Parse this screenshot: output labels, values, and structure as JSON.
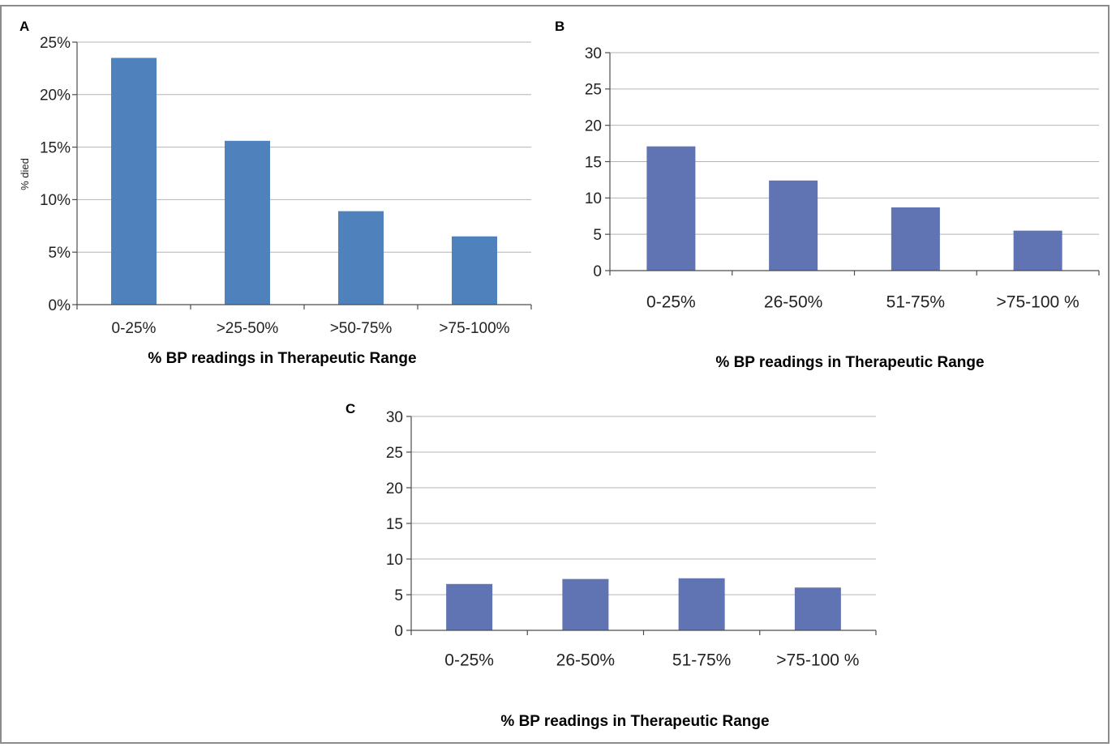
{
  "chart_data": [
    {
      "panel": "A",
      "type": "bar",
      "categories": [
        "0-25%",
        ">25-50%",
        ">50-75%",
        ">75-100%"
      ],
      "values": [
        23.5,
        15.6,
        8.9,
        6.5
      ],
      "ylim": [
        0,
        25
      ],
      "yticks": [
        "0%",
        "5%",
        "10%",
        "15%",
        "20%",
        "25%"
      ],
      "ylabel": "% died",
      "xlabel": "% BP readings in Therapeutic Range",
      "grid": true,
      "color": "#4f81bd"
    },
    {
      "panel": "B",
      "type": "bar",
      "categories": [
        "0-25%",
        "26-50%",
        "51-75%",
        ">75-100 %"
      ],
      "values": [
        17.1,
        12.4,
        8.7,
        5.5
      ],
      "ylim": [
        0,
        30
      ],
      "yticks": [
        "0",
        "5",
        "10",
        "15",
        "20",
        "25",
        "30"
      ],
      "ylabel": "",
      "xlabel": "% BP readings in Therapeutic Range",
      "grid": true,
      "color": "#6074b3"
    },
    {
      "panel": "C",
      "type": "bar",
      "categories": [
        "0-25%",
        "26-50%",
        "51-75%",
        ">75-100 %"
      ],
      "values": [
        6.5,
        7.2,
        7.3,
        6.0
      ],
      "ylim": [
        0,
        30
      ],
      "yticks": [
        "0",
        "5",
        "10",
        "15",
        "20",
        "25",
        "30"
      ],
      "ylabel": "",
      "xlabel": "% BP readings in Therapeutic Range",
      "grid": true,
      "color": "#6074b3"
    }
  ]
}
